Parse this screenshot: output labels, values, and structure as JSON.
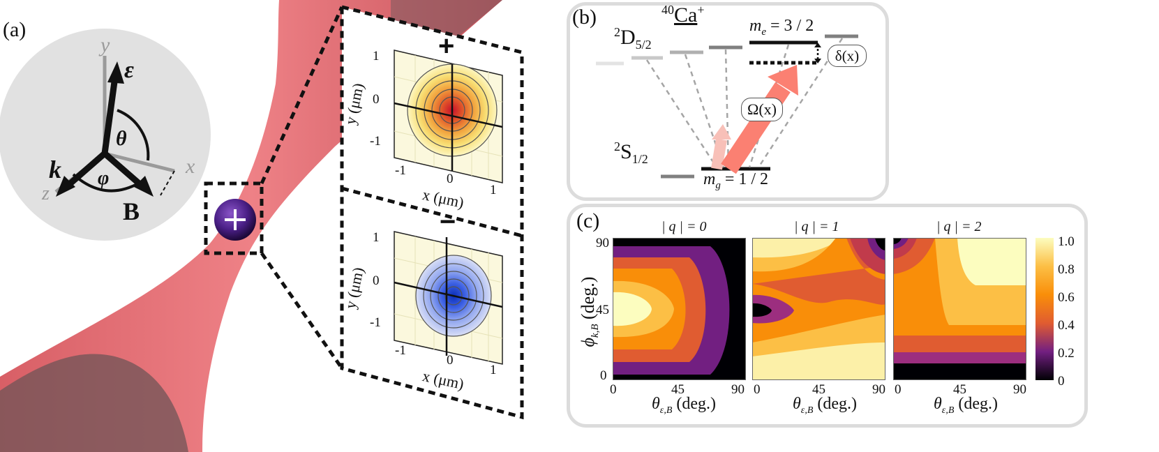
{
  "panel_a": {
    "label": "(a)",
    "axes": {
      "y": "y",
      "x": "x",
      "z": "z"
    },
    "vectors": {
      "epsilon": "ε",
      "k": "k",
      "B": "B"
    },
    "angles": {
      "theta": "θ",
      "phi": "φ"
    },
    "ion_symbol": "+",
    "insets": [
      {
        "sign": "+",
        "xlabel": "x (μm)",
        "ylabel": "y (μm)",
        "x_ticks": [
          "-1",
          "0",
          "1"
        ],
        "y_ticks": [
          "1",
          "0",
          "-1"
        ]
      },
      {
        "sign": "−",
        "xlabel": "x (μm)",
        "ylabel": "y (μm)",
        "x_ticks": [
          "-1",
          "0",
          "1"
        ],
        "y_ticks": [
          "1",
          "0",
          "-1"
        ]
      }
    ]
  },
  "panel_b": {
    "label": "(b)",
    "species_mass": "40",
    "species_name": "Ca",
    "species_charge": "+",
    "upper_level": {
      "pre": "2",
      "base": "D",
      "sub": "5/2"
    },
    "lower_level": {
      "pre": "2",
      "base": "S",
      "sub": "1/2"
    },
    "me_label": {
      "base": "m",
      "sub": "e",
      "value": "= 3 / 2"
    },
    "mg_label": {
      "base": "m",
      "sub": "g",
      "value": "= 1 / 2"
    },
    "detuning_label": "δ(x)",
    "rabi_label": "Ω(x)"
  },
  "panel_c": {
    "label": "(c)",
    "colorbar_ticks": [
      "1.0",
      "0.8",
      "0.6",
      "0.4",
      "0.2",
      "0"
    ]
  },
  "chart_data": {
    "type": "heatmap",
    "panels": [
      {
        "title": "| q | = 0",
        "q": 0
      },
      {
        "title": "| q | = 1",
        "q": 1
      },
      {
        "title": "| q | = 2",
        "q": 2
      }
    ],
    "xlabel": {
      "base": "θ",
      "sub": "ε,B",
      "unit": "(deg.)"
    },
    "ylabel": {
      "base": "ϕ",
      "sub": "k,B",
      "unit": "(deg.)"
    },
    "x_ticks": [
      "0",
      "45",
      "90"
    ],
    "y_ticks": [
      "90",
      "45",
      "0"
    ],
    "xlim": [
      0,
      90
    ],
    "ylim": [
      0,
      90
    ],
    "colorbar": {
      "min": 0,
      "max": 1.0,
      "ticks": [
        1.0,
        0.8,
        0.6,
        0.4,
        0.2,
        0
      ]
    }
  }
}
